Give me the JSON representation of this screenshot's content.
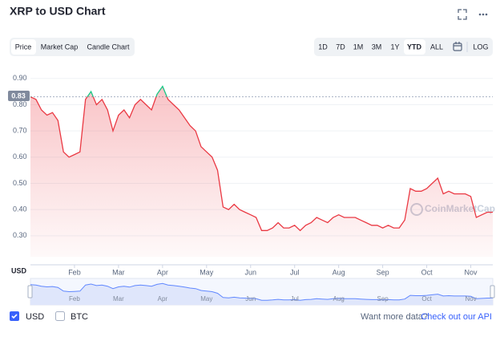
{
  "header": {
    "title": "XRP to USD Chart"
  },
  "tabs": [
    "Price",
    "Market Cap",
    "Candle Chart"
  ],
  "ranges": [
    "1D",
    "7D",
    "1M",
    "3M",
    "1Y",
    "YTD",
    "ALL",
    "LOG"
  ],
  "footer": {
    "options": [
      "USD",
      "BTC"
    ],
    "prompt": "Want more data?",
    "link": "Check out our API"
  },
  "chart_data": {
    "type": "line",
    "watermark": "CoinMarketCap",
    "axis_label": "USD",
    "current_value": 0.83,
    "color": "#ea3943",
    "up_color": "#16c784",
    "categories": [
      null,
      null,
      null,
      null,
      null,
      null,
      null,
      null,
      "Feb",
      null,
      null,
      null,
      null,
      null,
      null,
      null,
      "Mar",
      null,
      null,
      null,
      null,
      null,
      null,
      null,
      "Apr",
      null,
      null,
      null,
      null,
      null,
      null,
      null,
      "May",
      null,
      null,
      null,
      null,
      null,
      null,
      null,
      "Jun",
      null,
      null,
      null,
      null,
      null,
      null,
      null,
      "Jul",
      null,
      null,
      null,
      null,
      null,
      null,
      null,
      "Aug",
      null,
      null,
      null,
      null,
      null,
      null,
      null,
      "Sep",
      null,
      null,
      null,
      null,
      null,
      null,
      null,
      "Oct",
      null,
      null,
      null,
      null,
      null,
      null,
      null,
      "Nov",
      null,
      null,
      null,
      null
    ],
    "values": [
      0.83,
      0.82,
      0.78,
      0.76,
      0.77,
      0.74,
      0.62,
      0.6,
      0.61,
      0.62,
      0.82,
      0.85,
      0.8,
      0.82,
      0.78,
      0.7,
      0.76,
      0.78,
      0.75,
      0.8,
      0.82,
      0.8,
      0.78,
      0.84,
      0.87,
      0.82,
      0.8,
      0.78,
      0.75,
      0.72,
      0.7,
      0.64,
      0.62,
      0.6,
      0.55,
      0.41,
      0.4,
      0.42,
      0.4,
      0.39,
      0.38,
      0.37,
      0.32,
      0.32,
      0.33,
      0.35,
      0.33,
      0.33,
      0.34,
      0.32,
      0.34,
      0.35,
      0.37,
      0.36,
      0.35,
      0.37,
      0.38,
      0.37,
      0.37,
      0.37,
      0.36,
      0.35,
      0.34,
      0.34,
      0.33,
      0.34,
      0.33,
      0.33,
      0.36,
      0.48,
      0.47,
      0.47,
      0.48,
      0.5,
      0.52,
      0.46,
      0.47,
      0.46,
      0.46,
      0.46,
      0.45,
      0.37,
      0.38,
      0.39,
      0.39
    ],
    "ylim": [
      0.22,
      0.93
    ],
    "yticks": [
      {
        "value": 0.3,
        "label": "0.30"
      },
      {
        "value": 0.4,
        "label": "0.40"
      },
      {
        "value": 0.5,
        "label": "0.50"
      },
      {
        "value": 0.6,
        "label": "0.60"
      },
      {
        "value": 0.7,
        "label": "0.70"
      },
      {
        "value": 0.8,
        "label": "0.80"
      },
      {
        "value": 0.9,
        "label": "0.90"
      }
    ],
    "grid": true
  }
}
